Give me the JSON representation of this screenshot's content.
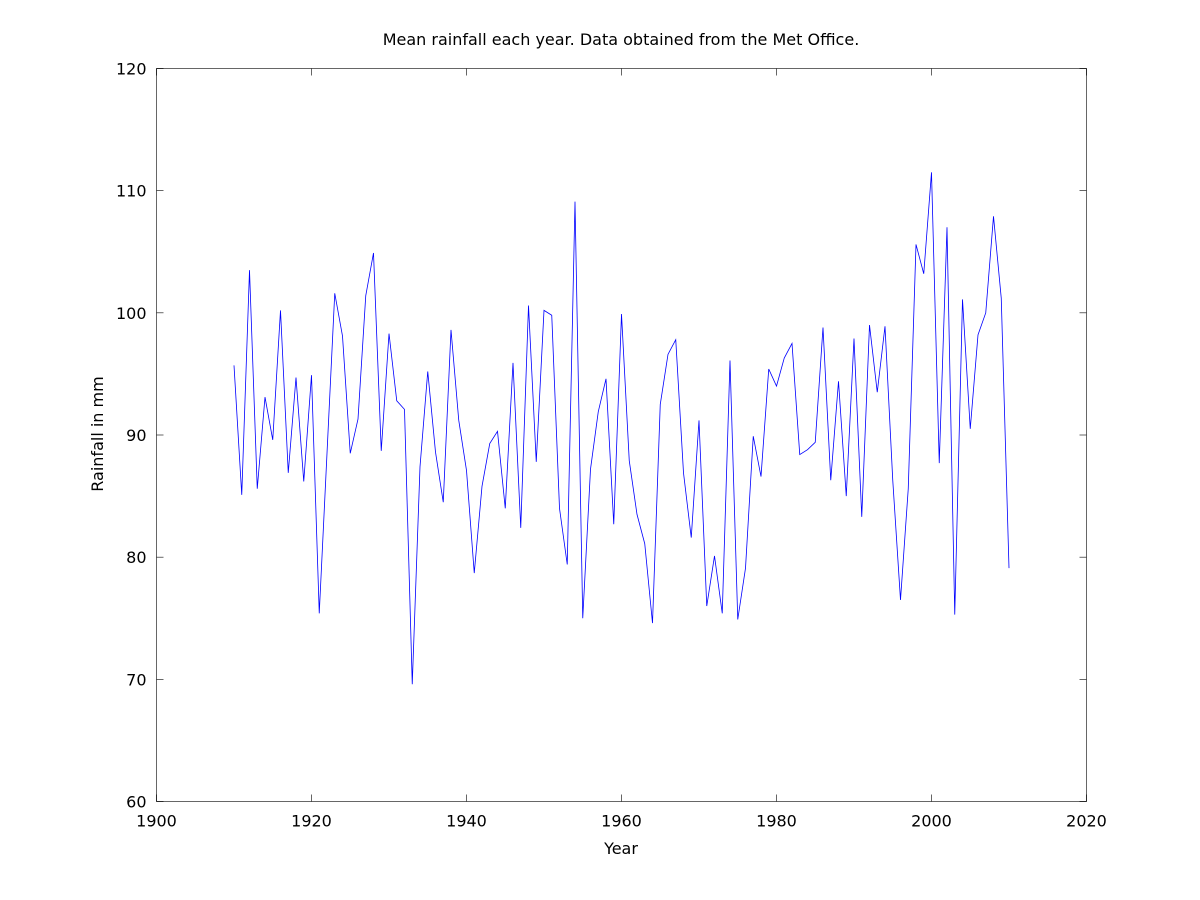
{
  "chart_data": {
    "type": "line",
    "title": "Mean rainfall each year. Data obtained from the Met Office.",
    "xlabel": "Year",
    "ylabel": "Rainfall in mm",
    "xlim": [
      1900,
      2020
    ],
    "ylim": [
      60,
      120
    ],
    "xticks": [
      "1900",
      "1920",
      "1940",
      "1960",
      "1980",
      "2000",
      "2020"
    ],
    "yticks": [
      "60",
      "70",
      "80",
      "90",
      "100",
      "110",
      "120"
    ],
    "grid": false,
    "legend": "none",
    "series": [
      {
        "color": "#0000ff",
        "x": [
          1910,
          1911,
          1912,
          1913,
          1914,
          1915,
          1916,
          1917,
          1918,
          1919,
          1920,
          1921,
          1922,
          1923,
          1924,
          1925,
          1926,
          1927,
          1928,
          1929,
          1930,
          1931,
          1932,
          1933,
          1934,
          1935,
          1936,
          1937,
          1938,
          1939,
          1940,
          1941,
          1942,
          1943,
          1944,
          1945,
          1946,
          1947,
          1948,
          1949,
          1950,
          1951,
          1952,
          1953,
          1954,
          1955,
          1956,
          1957,
          1958,
          1959,
          1960,
          1961,
          1962,
          1963,
          1964,
          1965,
          1966,
          1967,
          1968,
          1969,
          1970,
          1971,
          1972,
          1973,
          1974,
          1975,
          1976,
          1977,
          1978,
          1979,
          1980,
          1981,
          1982,
          1983,
          1984,
          1985,
          1986,
          1987,
          1988,
          1989,
          1990,
          1991,
          1992,
          1993,
          1994,
          1995,
          1996,
          1997,
          1998,
          1999,
          2000,
          2001,
          2002,
          2003,
          2004,
          2005,
          2006,
          2007,
          2008,
          2009,
          2010
        ],
        "values": [
          95.7,
          85.1,
          103.5,
          85.6,
          93.1,
          89.6,
          100.2,
          86.9,
          94.7,
          86.2,
          94.9,
          75.4,
          88.5,
          101.6,
          98.1,
          88.5,
          91.3,
          101.4,
          104.9,
          88.7,
          98.3,
          92.8,
          92.1,
          69.6,
          87.4,
          95.2,
          88.6,
          84.5,
          98.6,
          91.2,
          87.1,
          78.7,
          85.8,
          89.3,
          90.3,
          84.0,
          95.9,
          82.4,
          100.6,
          87.8,
          100.2,
          99.8,
          84.0,
          79.4,
          109.1,
          75.0,
          87.2,
          91.9,
          94.6,
          82.7,
          99.9,
          87.9,
          83.5,
          81.1,
          74.6,
          92.5,
          96.6,
          97.8,
          86.9,
          81.6,
          91.2,
          76.0,
          80.1,
          75.4,
          96.1,
          74.9,
          79.1,
          89.9,
          86.6,
          95.4,
          94.0,
          96.3,
          97.5,
          88.4,
          88.8,
          89.4,
          98.8,
          86.3,
          94.4,
          85.0,
          97.9,
          83.3,
          99.0,
          93.5,
          98.9,
          86.3,
          76.5,
          85.6,
          105.6,
          103.2,
          111.5,
          87.7,
          107.0,
          75.3,
          101.1,
          90.5,
          98.2,
          100.0,
          107.9,
          101.2,
          79.1
        ]
      }
    ]
  }
}
